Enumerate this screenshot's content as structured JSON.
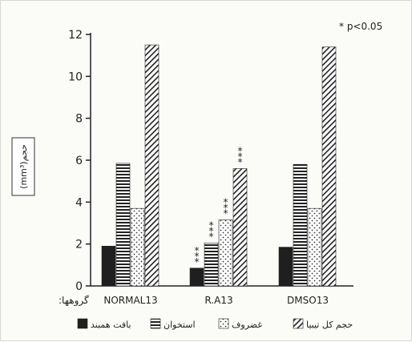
{
  "chart_data": {
    "type": "bar",
    "ylabel": "(mm³)حجم",
    "xlabel": ":گروهها",
    "annotation": "* p<0.05",
    "ylim": [
      0,
      12
    ],
    "yticks": [
      0,
      2,
      4,
      6,
      8,
      10,
      12
    ],
    "categories": [
      "NORMAL13",
      "R.A13",
      "DMSO13"
    ],
    "series": [
      {
        "name": "بافت همبند",
        "pattern": "solid",
        "values": [
          1.9,
          0.85,
          1.85
        ],
        "sig": [
          "",
          "***",
          ""
        ]
      },
      {
        "name": "استخوان",
        "pattern": "hlines",
        "values": [
          5.85,
          2.05,
          5.8
        ],
        "sig": [
          "",
          "***",
          ""
        ]
      },
      {
        "name": "غضروف",
        "pattern": "dots",
        "values": [
          3.7,
          3.15,
          3.7
        ],
        "sig": [
          "",
          "***",
          ""
        ]
      },
      {
        "name": "حجم کل تیبیا",
        "pattern": "diag",
        "values": [
          11.5,
          5.6,
          11.4
        ],
        "sig": [
          "",
          "***",
          ""
        ]
      }
    ],
    "legend_position": "bottom"
  }
}
